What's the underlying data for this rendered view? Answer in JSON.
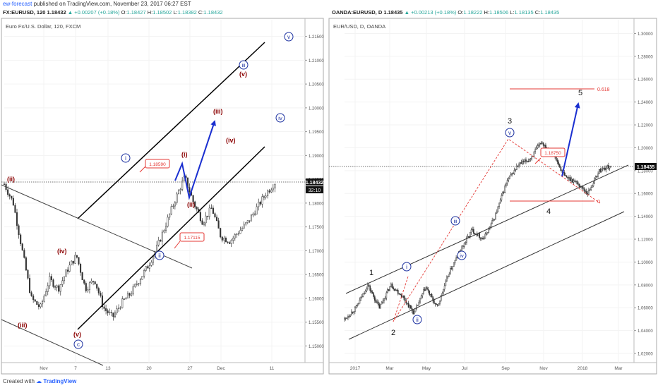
{
  "header": {
    "author": "ew-forecast",
    "published_text": " published on TradingView.com, November 23, 2017 06:27 EST"
  },
  "footer": {
    "created_with": "Created with",
    "brand": "TradingView"
  },
  "left_chart": {
    "symbol_line": {
      "symbol": "FX:EURUSD, 120",
      "price": "1.18432",
      "change": "▲ +0.00207 (+0.18%)",
      "open": "1.18427",
      "high": "1.18502",
      "low": "1.18382",
      "close": "1.18432"
    },
    "subtitle": "Euro Fx/U.S. Dollar, 120, FXCM",
    "price_tag": "1.18432",
    "countdown": "32:10",
    "level_labels": [
      "1.18590",
      "1.17115"
    ],
    "wave_labels": {
      "circled": [
        "i",
        "ii",
        "iii",
        "iv",
        "v",
        "c"
      ],
      "red": [
        "(i)",
        "(ii)",
        "(iii)",
        "(iv)",
        "(v)",
        "(ii)",
        "(iii)",
        "(iv)",
        "(v)"
      ]
    }
  },
  "right_chart": {
    "symbol_line": {
      "symbol": "OANDA:EURUSD, D",
      "price": "1.18435",
      "change": "▲ +0.00213 (+0.18%)",
      "open": "1.18222",
      "high": "1.18506",
      "low": "1.18135",
      "close": "1.18435"
    },
    "subtitle": "EUR/USD, D, OANDA",
    "price_tag": "1.18435",
    "level_labels": [
      "1.18750"
    ],
    "fib_labels": [
      "0.618",
      "0"
    ],
    "wave_labels": {
      "numbers": [
        "1",
        "2",
        "3",
        "4",
        "5"
      ],
      "circled": [
        "i",
        "ii",
        "iii",
        "iv",
        "v"
      ]
    }
  },
  "chart_data": [
    {
      "type": "candlestick",
      "title": "Euro Fx/U.S. Dollar, 120, FXCM",
      "x_ticks": [
        "Nov",
        "7",
        "13",
        "20",
        "27",
        "Dec",
        "11"
      ],
      "y_ticks": [
        "1.21500",
        "1.21000",
        "1.20500",
        "1.20000",
        "1.19500",
        "1.19000",
        "1.18500",
        "1.18000",
        "1.17500",
        "1.17000",
        "1.16500",
        "1.16000",
        "1.15500",
        "1.15000"
      ],
      "ylim": [
        1.1465,
        1.2185
      ],
      "last_price": 1.18432,
      "price_path": [
        {
          "x": 0,
          "y": 1.184
        },
        {
          "x": 0.03,
          "y": 1.18
        },
        {
          "x": 0.06,
          "y": 1.17
        },
        {
          "x": 0.09,
          "y": 1.16
        },
        {
          "x": 0.12,
          "y": 1.158
        },
        {
          "x": 0.15,
          "y": 1.164
        },
        {
          "x": 0.18,
          "y": 1.162
        },
        {
          "x": 0.21,
          "y": 1.166
        },
        {
          "x": 0.24,
          "y": 1.169
        },
        {
          "x": 0.27,
          "y": 1.162
        },
        {
          "x": 0.3,
          "y": 1.164
        },
        {
          "x": 0.33,
          "y": 1.158
        },
        {
          "x": 0.36,
          "y": 1.156
        },
        {
          "x": 0.39,
          "y": 1.159
        },
        {
          "x": 0.42,
          "y": 1.161
        },
        {
          "x": 0.45,
          "y": 1.164
        },
        {
          "x": 0.48,
          "y": 1.167
        },
        {
          "x": 0.51,
          "y": 1.171
        },
        {
          "x": 0.54,
          "y": 1.176
        },
        {
          "x": 0.57,
          "y": 1.181
        },
        {
          "x": 0.6,
          "y": 1.1855
        },
        {
          "x": 0.63,
          "y": 1.18
        },
        {
          "x": 0.66,
          "y": 1.176
        },
        {
          "x": 0.69,
          "y": 1.179
        },
        {
          "x": 0.72,
          "y": 1.173
        },
        {
          "x": 0.75,
          "y": 1.172
        },
        {
          "x": 0.78,
          "y": 1.174
        },
        {
          "x": 0.81,
          "y": 1.176
        },
        {
          "x": 0.84,
          "y": 1.179
        },
        {
          "x": 0.87,
          "y": 1.182
        },
        {
          "x": 0.9,
          "y": 1.1843
        }
      ]
    },
    {
      "type": "candlestick",
      "title": "EUR/USD, D, OANDA",
      "x_ticks": [
        "2017",
        "Mar",
        "May",
        "Jul",
        "Sep",
        "Nov",
        "2018",
        "Mar"
      ],
      "y_ticks": [
        "1.30000",
        "1.28000",
        "1.26000",
        "1.24000",
        "1.22000",
        "1.20000",
        "1.18000",
        "1.16000",
        "1.14000",
        "1.12000",
        "1.10000",
        "1.08000",
        "1.06000",
        "1.04000",
        "1.02000"
      ],
      "ylim": [
        1.012,
        1.312
      ],
      "last_price": 1.18435,
      "price_path": [
        {
          "x": 0,
          "y": 1.05
        },
        {
          "x": 0.04,
          "y": 1.06
        },
        {
          "x": 0.08,
          "y": 1.08
        },
        {
          "x": 0.12,
          "y": 1.06
        },
        {
          "x": 0.16,
          "y": 1.08
        },
        {
          "x": 0.2,
          "y": 1.07
        },
        {
          "x": 0.24,
          "y": 1.055
        },
        {
          "x": 0.28,
          "y": 1.078
        },
        {
          "x": 0.32,
          "y": 1.06
        },
        {
          "x": 0.36,
          "y": 1.09
        },
        {
          "x": 0.4,
          "y": 1.11
        },
        {
          "x": 0.44,
          "y": 1.128
        },
        {
          "x": 0.48,
          "y": 1.12
        },
        {
          "x": 0.52,
          "y": 1.14
        },
        {
          "x": 0.56,
          "y": 1.17
        },
        {
          "x": 0.6,
          "y": 1.185
        },
        {
          "x": 0.64,
          "y": 1.19
        },
        {
          "x": 0.68,
          "y": 1.205
        },
        {
          "x": 0.72,
          "y": 1.195
        },
        {
          "x": 0.76,
          "y": 1.175
        },
        {
          "x": 0.8,
          "y": 1.17
        },
        {
          "x": 0.84,
          "y": 1.16
        },
        {
          "x": 0.88,
          "y": 1.18
        },
        {
          "x": 0.92,
          "y": 1.1843
        }
      ],
      "fib_levels": [
        {
          "label": "0.618",
          "value": 1.254
        },
        {
          "label": "0",
          "value": 1.155
        }
      ]
    }
  ]
}
